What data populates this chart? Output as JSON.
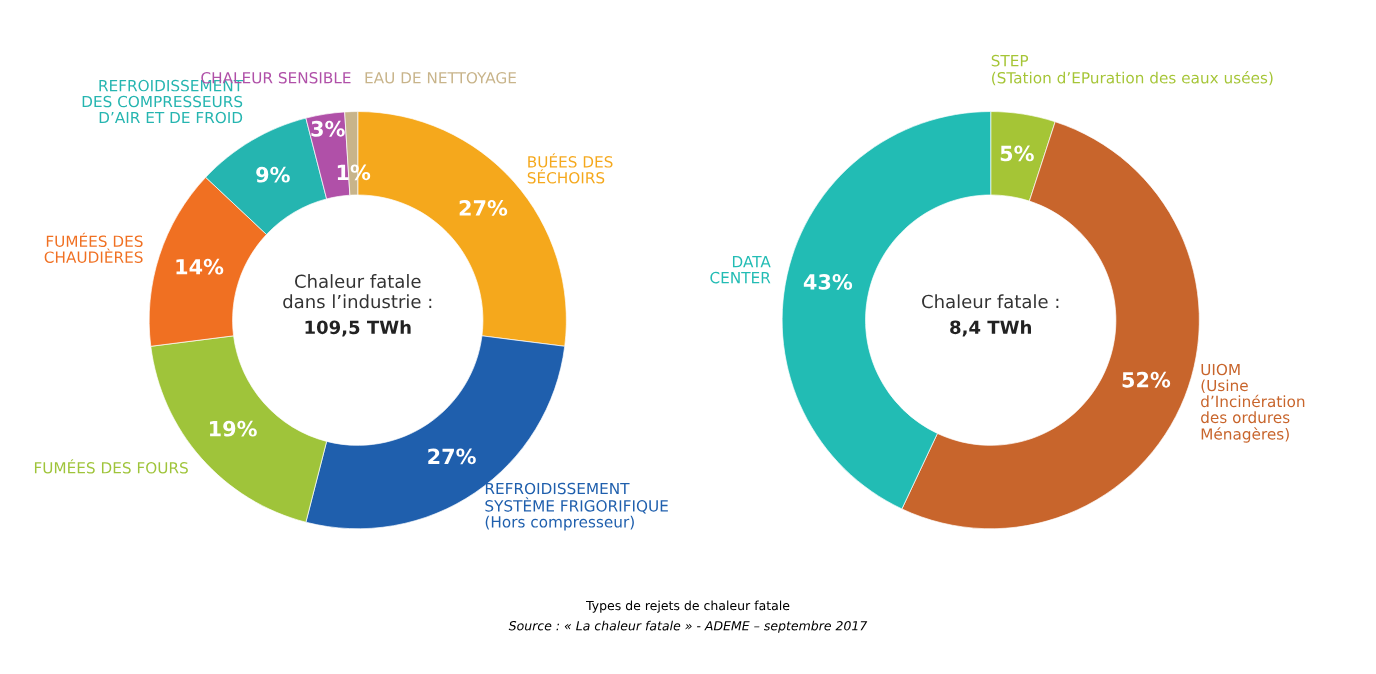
{
  "chart_data": [
    {
      "type": "donut",
      "categories": [
        "BUÉES DES\nSÉCHOIRS",
        "REFROIDISSEMENT\nSYSTÈME FRIGORIFIQUE\n(Hors compresseur)",
        "FUMÉES DES FOURS",
        "FUMÉES DES\nCHAUDIÈRES",
        "REFROIDISSEMENT\nDES COMPRESSEURS\nD’AIR ET DE FROID",
        "CHALEUR SENSIBLE",
        "EAU DE NETTOYAGE"
      ],
      "values": [
        27,
        27,
        19,
        14,
        9,
        3,
        1
      ],
      "value_labels": [
        "27%",
        "27%",
        "19%",
        "14%",
        "9%",
        "3%",
        "1%"
      ],
      "colors": [
        "#f5a81c",
        "#1f5fad",
        "#9fc43a",
        "#f07022",
        "#25b5b0",
        "#b050a8",
        "#c8b48a"
      ],
      "annotations": [
        "Chaleur fatale\ndans l’industrie :",
        "109,5 TWh",
        "Types de rejets de chaleur fatale",
        "Source : « La chaleur fatale » - ADEME – septembre 2017"
      ]
    },
    {
      "type": "donut",
      "categories": [
        "STEP\n(STation d’EPuration des eaux usées)",
        "UIOM\n(Usine\nd’Incinération\ndes ordures\nMénagères)",
        "DATA\nCENTER"
      ],
      "values": [
        5,
        52,
        43
      ],
      "value_labels": [
        "5%",
        "52%",
        "43%"
      ],
      "colors": [
        "#a5c536",
        "#c8652c",
        "#22bcb4"
      ],
      "annotations": [
        "Chaleur fatale :",
        "8,4 TWh"
      ]
    }
  ]
}
